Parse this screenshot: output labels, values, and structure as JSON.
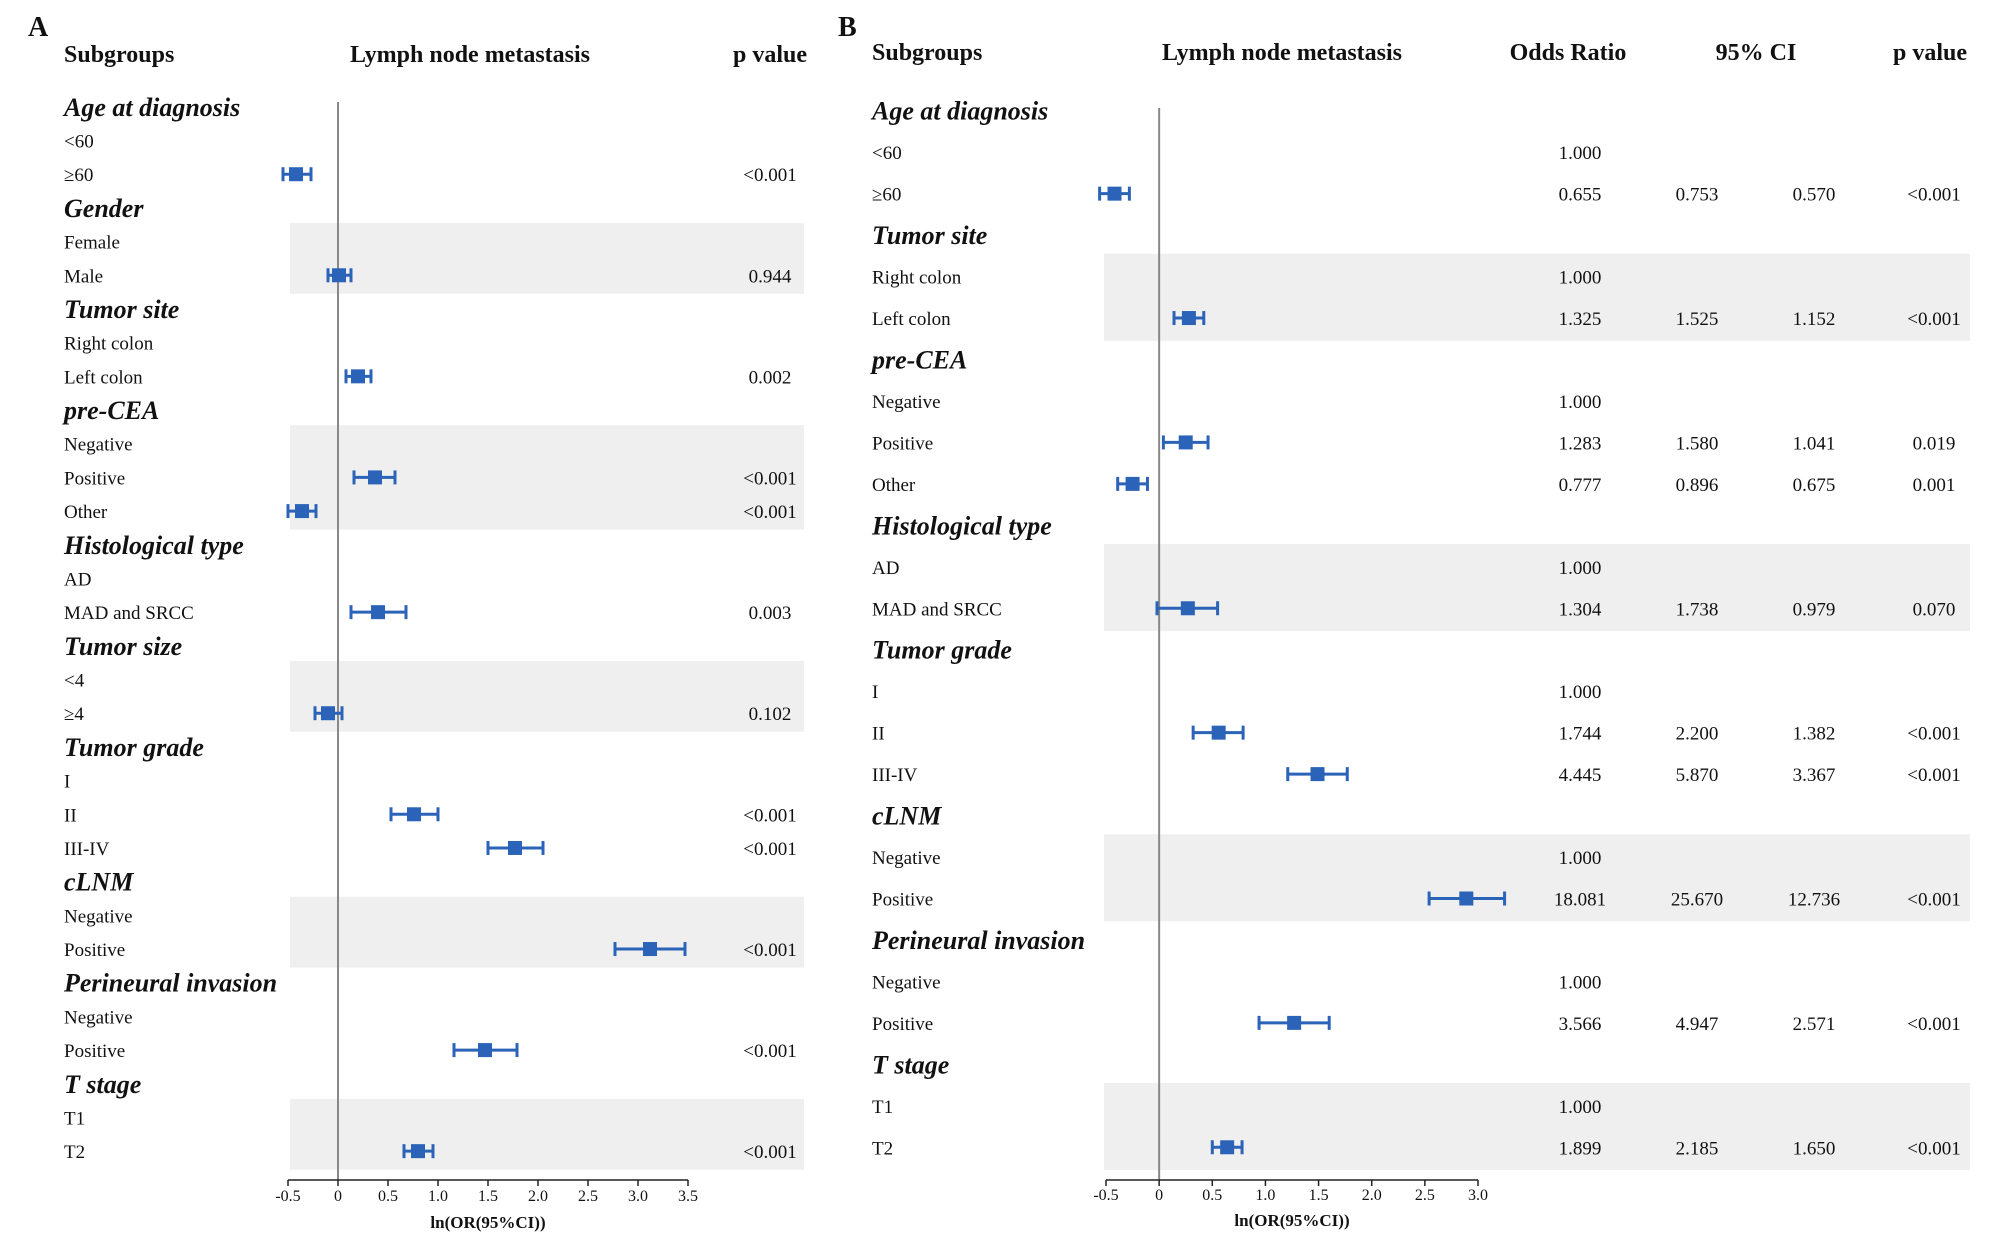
{
  "chart_data": [
    {
      "type": "forest",
      "panel": "A",
      "headers": {
        "subgroups": "Subgroups",
        "title": "Lymph node metastasis",
        "pvalue": "p value"
      },
      "xlabel": "ln(OR(95%CI))",
      "xlim": [
        -0.5,
        3.5
      ],
      "xticks": [
        "-0.5",
        "0",
        "0.5",
        "1.0",
        "1.5",
        "2.0",
        "2.5",
        "3.0",
        "3.5"
      ],
      "groups": [
        {
          "name": "Age at diagnosis",
          "shaded": false,
          "rows": [
            {
              "label": "<60"
            },
            {
              "label": "≥60",
              "est": -0.42,
              "lo": -0.55,
              "hi": -0.27,
              "p": "<0.001"
            }
          ]
        },
        {
          "name": "Gender",
          "shaded": true,
          "rows": [
            {
              "label": "Female"
            },
            {
              "label": "Male",
              "est": 0.01,
              "lo": -0.1,
              "hi": 0.13,
              "p": "0.944"
            }
          ]
        },
        {
          "name": "Tumor site",
          "shaded": false,
          "rows": [
            {
              "label": "Right colon"
            },
            {
              "label": "Left colon",
              "est": 0.2,
              "lo": 0.08,
              "hi": 0.33,
              "p": "0.002"
            }
          ]
        },
        {
          "name": "pre-CEA",
          "shaded": true,
          "rows": [
            {
              "label": "Negative"
            },
            {
              "label": "Positive",
              "est": 0.37,
              "lo": 0.16,
              "hi": 0.57,
              "p": "<0.001"
            },
            {
              "label": "Other",
              "est": -0.36,
              "lo": -0.5,
              "hi": -0.22,
              "p": "<0.001"
            }
          ]
        },
        {
          "name": "Histological type",
          "shaded": false,
          "rows": [
            {
              "label": "AD"
            },
            {
              "label": "MAD and SRCC",
              "est": 0.4,
              "lo": 0.13,
              "hi": 0.68,
              "p": "0.003"
            }
          ]
        },
        {
          "name": "Tumor size",
          "shaded": true,
          "rows": [
            {
              "label": "<4"
            },
            {
              "label": "≥4",
              "est": -0.1,
              "lo": -0.23,
              "hi": 0.04,
              "p": "0.102"
            }
          ]
        },
        {
          "name": "Tumor grade",
          "shaded": false,
          "rows": [
            {
              "label": "I"
            },
            {
              "label": "II",
              "est": 0.76,
              "lo": 0.53,
              "hi": 1.0,
              "p": "<0.001"
            },
            {
              "label": "III-IV",
              "est": 1.77,
              "lo": 1.5,
              "hi": 2.05,
              "p": "<0.001"
            }
          ]
        },
        {
          "name": "cLNM",
          "shaded": true,
          "rows": [
            {
              "label": "Negative"
            },
            {
              "label": "Positive",
              "est": 3.12,
              "lo": 2.77,
              "hi": 3.47,
              "p": "<0.001"
            }
          ]
        },
        {
          "name": "Perineural invasion",
          "shaded": false,
          "rows": [
            {
              "label": "Negative"
            },
            {
              "label": "Positive",
              "est": 1.47,
              "lo": 1.16,
              "hi": 1.79,
              "p": "<0.001"
            }
          ]
        },
        {
          "name": "T stage",
          "shaded": true,
          "rows": [
            {
              "label": "T1"
            },
            {
              "label": "T2",
              "est": 0.8,
              "lo": 0.66,
              "hi": 0.95,
              "p": "<0.001"
            }
          ]
        }
      ]
    },
    {
      "type": "forest",
      "panel": "B",
      "headers": {
        "subgroups": "Subgroups",
        "title": "Lymph node metastasis",
        "or": "Odds Ratio",
        "ci": "95% CI",
        "pvalue": "p value"
      },
      "xlabel": "ln(OR(95%CI))",
      "xlim": [
        -0.5,
        3.0
      ],
      "xticks": [
        "-0.5",
        "0",
        "0.5",
        "1.0",
        "1.5",
        "2.0",
        "2.5",
        "3.0"
      ],
      "groups": [
        {
          "name": "Age at diagnosis",
          "shaded": false,
          "rows": [
            {
              "label": "<60",
              "or": "1.000"
            },
            {
              "label": "≥60",
              "est": -0.42,
              "lo": -0.56,
              "hi": -0.28,
              "or": "0.655",
              "ci1": "0.753",
              "ci2": "0.570",
              "p": "<0.001"
            }
          ]
        },
        {
          "name": "Tumor site",
          "shaded": true,
          "rows": [
            {
              "label": "Right colon",
              "or": "1.000"
            },
            {
              "label": "Left colon",
              "est": 0.28,
              "lo": 0.14,
              "hi": 0.42,
              "or": "1.325",
              "ci1": "1.525",
              "ci2": "1.152",
              "p": "<0.001"
            }
          ]
        },
        {
          "name": "pre-CEA",
          "shaded": false,
          "rows": [
            {
              "label": "Negative",
              "or": "1.000"
            },
            {
              "label": "Positive",
              "est": 0.25,
              "lo": 0.04,
              "hi": 0.46,
              "or": "1.283",
              "ci1": "1.580",
              "ci2": "1.041",
              "p": "0.019"
            },
            {
              "label": "Other",
              "est": -0.25,
              "lo": -0.39,
              "hi": -0.11,
              "or": "0.777",
              "ci1": "0.896",
              "ci2": "0.675",
              "p": "0.001"
            }
          ]
        },
        {
          "name": "Histological type",
          "shaded": true,
          "rows": [
            {
              "label": "AD",
              "or": "1.000"
            },
            {
              "label": "MAD and SRCC",
              "est": 0.27,
              "lo": -0.02,
              "hi": 0.55,
              "or": "1.304",
              "ci1": "1.738",
              "ci2": "0.979",
              "p": "0.070"
            }
          ]
        },
        {
          "name": "Tumor grade",
          "shaded": false,
          "rows": [
            {
              "label": "I",
              "or": "1.000"
            },
            {
              "label": "II",
              "est": 0.56,
              "lo": 0.32,
              "hi": 0.79,
              "or": "1.744",
              "ci1": "2.200",
              "ci2": "1.382",
              "p": "<0.001"
            },
            {
              "label": "III-IV",
              "est": 1.49,
              "lo": 1.21,
              "hi": 1.77,
              "or": "4.445",
              "ci1": "5.870",
              "ci2": "3.367",
              "p": "<0.001"
            }
          ]
        },
        {
          "name": "cLNM",
          "shaded": true,
          "rows": [
            {
              "label": "Negative",
              "or": "1.000"
            },
            {
              "label": "Positive",
              "est": 2.89,
              "lo": 2.54,
              "hi": 3.25,
              "or": "18.081",
              "ci1": "25.670",
              "ci2": "12.736",
              "p": "<0.001"
            }
          ]
        },
        {
          "name": "Perineural invasion",
          "shaded": false,
          "rows": [
            {
              "label": "Negative",
              "or": "1.000"
            },
            {
              "label": "Positive",
              "est": 1.27,
              "lo": 0.94,
              "hi": 1.6,
              "or": "3.566",
              "ci1": "4.947",
              "ci2": "2.571",
              "p": "<0.001"
            }
          ]
        },
        {
          "name": "T stage",
          "shaded": true,
          "rows": [
            {
              "label": "T1",
              "or": "1.000"
            },
            {
              "label": "T2",
              "est": 0.64,
              "lo": 0.5,
              "hi": 0.78,
              "or": "1.899",
              "ci1": "2.185",
              "ci2": "1.650",
              "p": "<0.001"
            }
          ]
        }
      ]
    }
  ],
  "colors": {
    "marker": "#2b63b8",
    "band": "#efefef",
    "refline": "#888888",
    "text": "#111111"
  }
}
